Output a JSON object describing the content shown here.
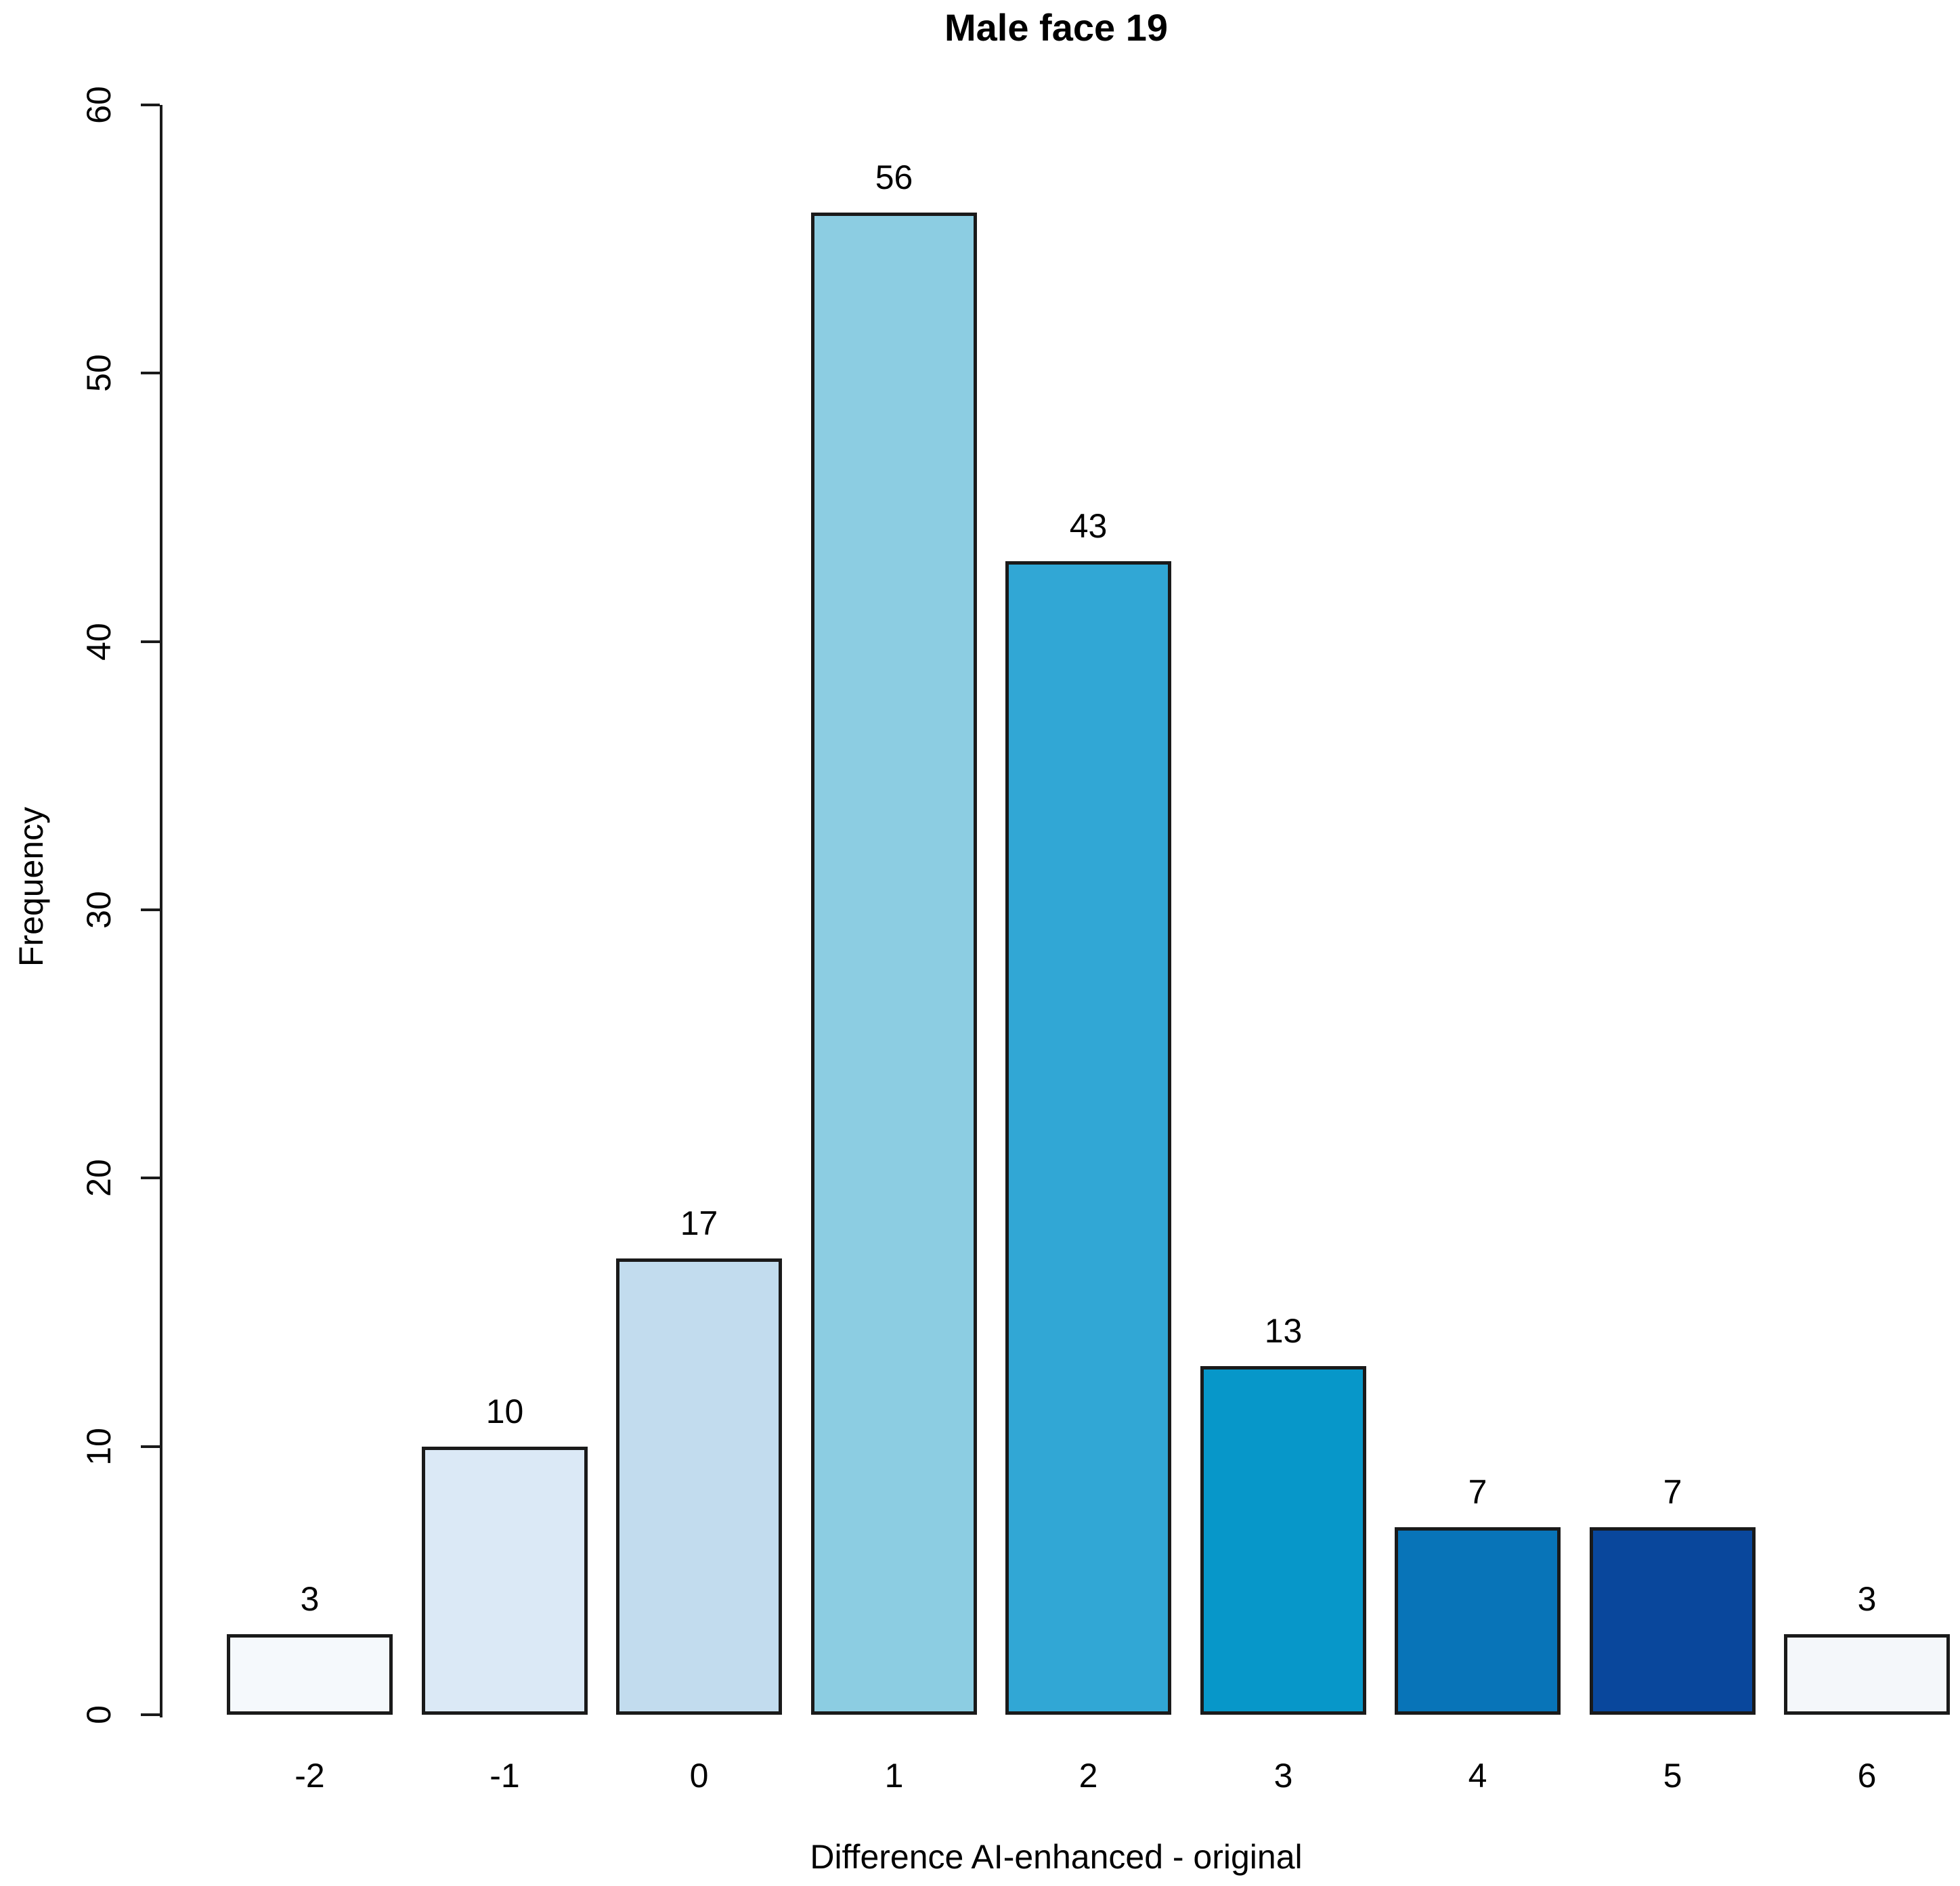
{
  "title": "Male face 19",
  "chart_data": {
    "type": "bar",
    "title": "Male face 19",
    "xlabel": "Difference AI-enhanced - original",
    "ylabel": "Frequency",
    "categories": [
      "-2",
      "-1",
      "0",
      "1",
      "2",
      "3",
      "4",
      "5",
      "6"
    ],
    "values": [
      3,
      10,
      17,
      56,
      43,
      13,
      7,
      7,
      3
    ],
    "value_labels": [
      "3",
      "10",
      "17",
      "56",
      "43",
      "13",
      "7",
      "7",
      "3"
    ],
    "y_ticks": [
      0,
      10,
      20,
      30,
      40,
      50,
      60
    ],
    "y_tick_labels": [
      "0",
      "10",
      "20",
      "30",
      "40",
      "50",
      "60"
    ],
    "ylim": [
      0,
      60
    ],
    "grid": false,
    "legend": false,
    "bar_colors": [
      "#F5F9FC",
      "#DBE9F6",
      "#C2DCEE",
      "#8CCDE2",
      "#31A7D5",
      "#0797C9",
      "#0874B8",
      "#09479C",
      "#F4F7FA"
    ],
    "bar_border_color": "#1A1A1A",
    "axis_color": "#1A1A1A",
    "background_color": "#FFFFFF",
    "text_color": "#000000"
  }
}
